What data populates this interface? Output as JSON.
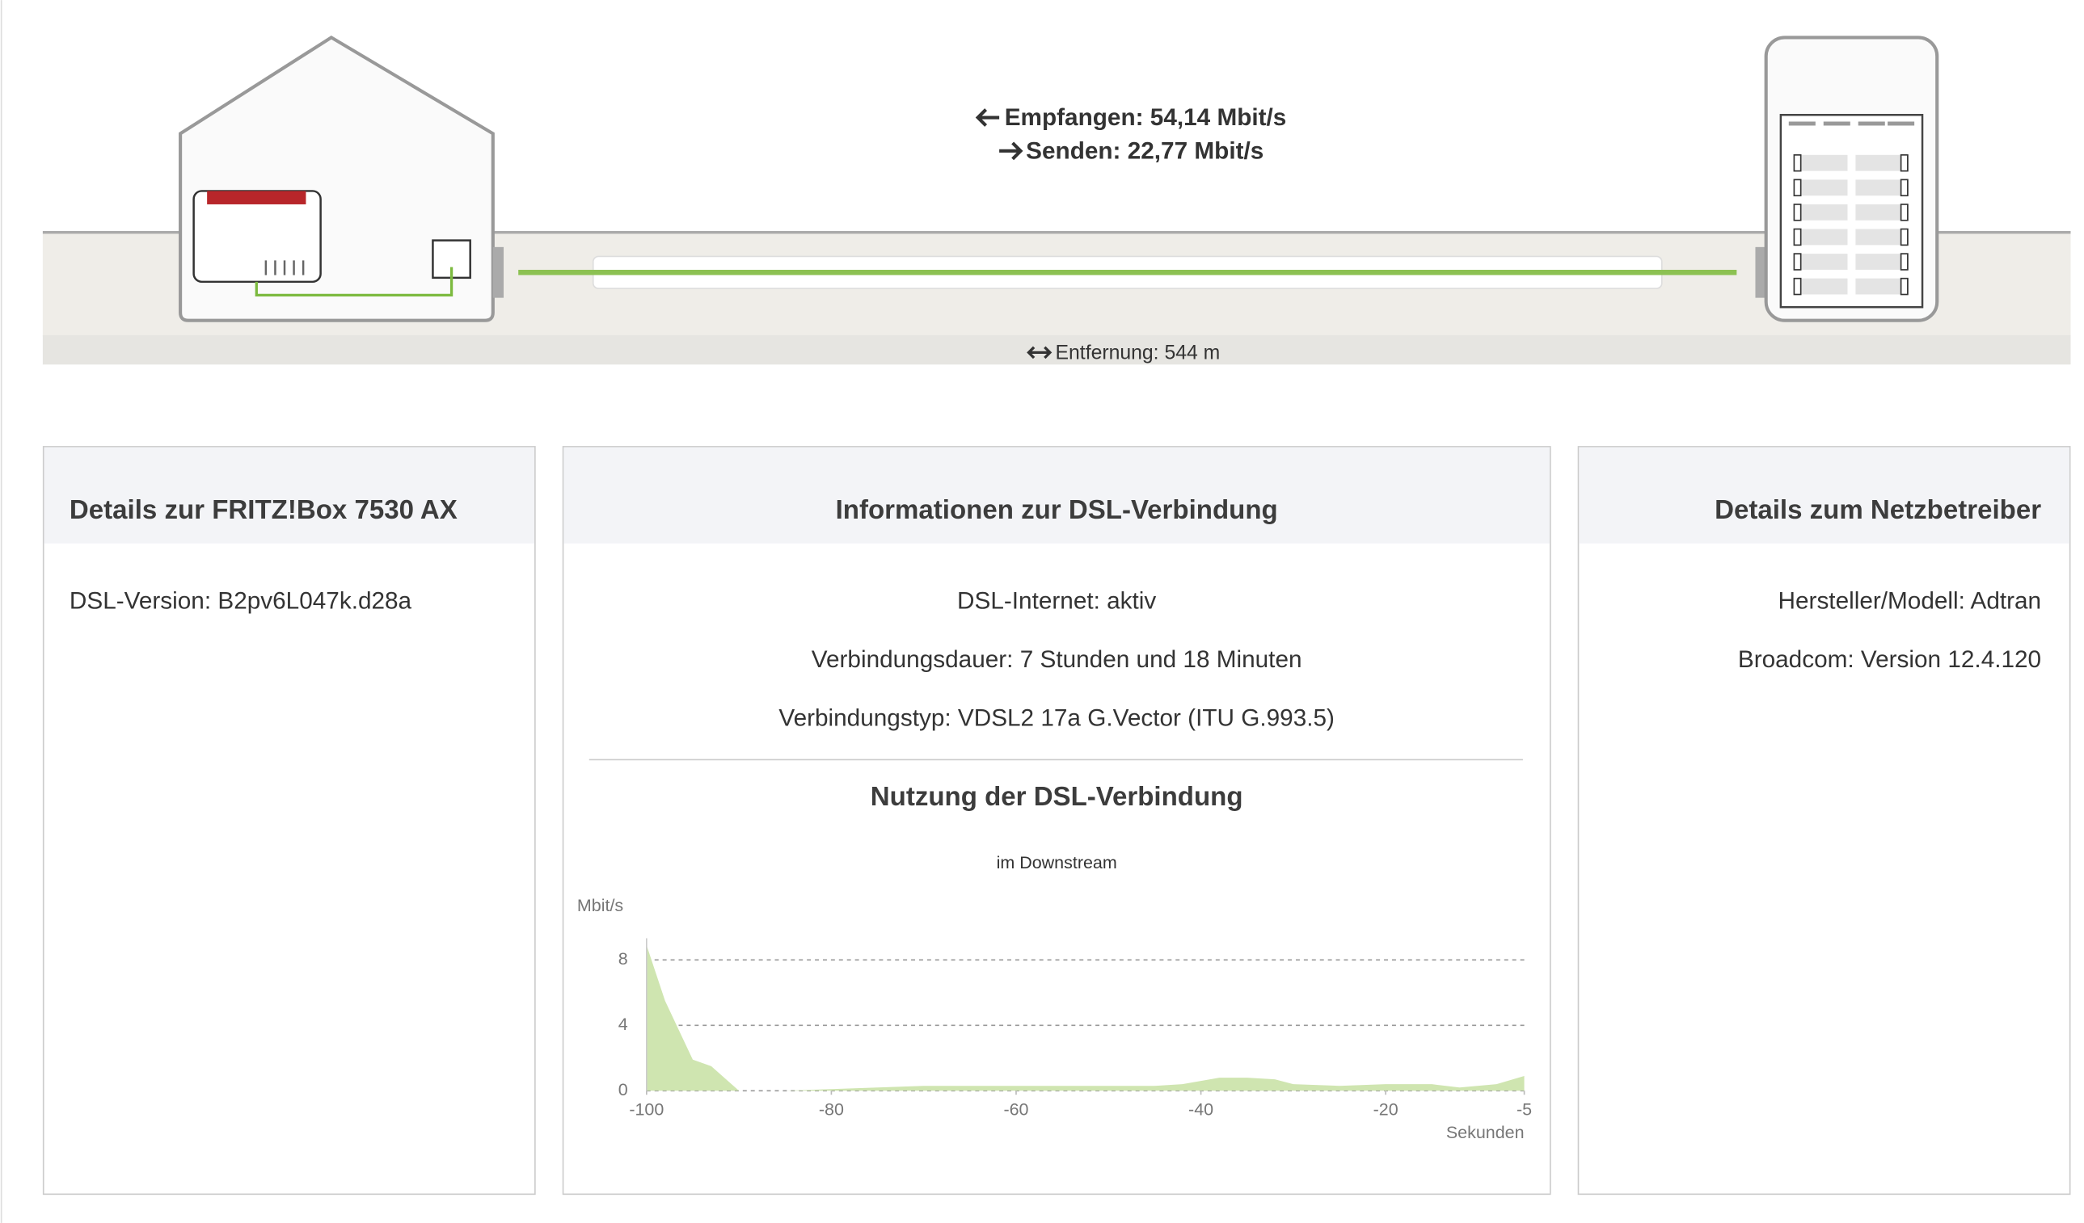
{
  "connection": {
    "receive": "Empfangen: 54,14 Mbit/s",
    "send": "Senden: 22,77 Mbit/s",
    "distance": "Entfernung: 544 m"
  },
  "fritzbox": {
    "title": "Details zur FRITZ!Box 7530 AX",
    "lines": [
      "DSL-Version: B2pv6L047k.d28a"
    ]
  },
  "dsl_info": {
    "title": "Informationen zur DSL-Verbindung",
    "lines": [
      "DSL-Internet: aktiv",
      "Verbindungsdauer: 7 Stunden und 18 Minuten",
      "Verbindungstyp: VDSL2 17a G.Vector (ITU G.993.5)"
    ]
  },
  "provider": {
    "title": "Details zum Netzbetreiber",
    "lines": [
      "Hersteller/Modell: Adtran",
      "Broadcom: Version 12.4.120"
    ]
  },
  "usage_chart": {
    "type": "area",
    "title": "Nutzung der DSL-Verbindung",
    "subtitle": "im Downstream",
    "y_label": "Mbit/s",
    "x_label": "Sekunden",
    "x": [
      -100,
      -98,
      -95,
      -93,
      -90,
      -85,
      -80,
      -75,
      -70,
      -65,
      -60,
      -55,
      -50,
      -45,
      -42,
      -38,
      -35,
      -32,
      -30,
      -25,
      -20,
      -15,
      -12,
      -8,
      -5
    ],
    "values": [
      8.9,
      5.5,
      1.9,
      1.5,
      0,
      0,
      0.1,
      0.2,
      0.3,
      0.3,
      0.3,
      0.3,
      0.3,
      0.3,
      0.4,
      0.8,
      0.8,
      0.7,
      0.4,
      0.3,
      0.4,
      0.4,
      0.2,
      0.4,
      0.9
    ],
    "color": "#cfe5b0",
    "xlim": [
      -100,
      -5
    ],
    "ylim": [
      0,
      9
    ],
    "xticks": [
      -100,
      -80,
      -60,
      -40,
      -20,
      -5
    ],
    "yticks": [
      0,
      4,
      8
    ],
    "grid": true
  }
}
